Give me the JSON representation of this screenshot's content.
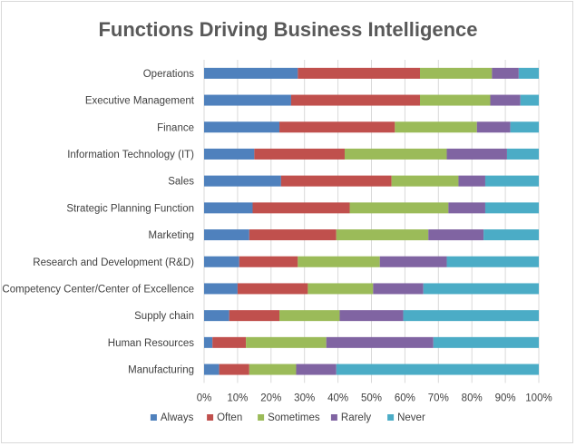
{
  "chart_data": {
    "type": "bar",
    "orientation": "horizontal",
    "stacked": "percent",
    "title": "Functions Driving Business Intelligence",
    "xlim": [
      0,
      100
    ],
    "x_ticks": [
      "0%",
      "10%",
      "20%",
      "30%",
      "40%",
      "50%",
      "60%",
      "70%",
      "80%",
      "90%",
      "100%"
    ],
    "grid": "vertical",
    "legend_position": "bottom",
    "categories": [
      "Operations",
      "Executive Management",
      "Finance",
      "Information Technology (IT)",
      "Sales",
      "Strategic Planning Function",
      "Marketing",
      "Research and Development (R&D)",
      "Competency Center/Center of Excellence",
      "Supply chain",
      "Human Resources",
      "Manufacturing"
    ],
    "series": [
      {
        "name": "Always",
        "color": "#4f81bd",
        "values": [
          28,
          26,
          22.5,
          15,
          23,
          14.5,
          13.5,
          10.5,
          10,
          7.5,
          2.5,
          4.5
        ]
      },
      {
        "name": "Often",
        "color": "#c0504d",
        "values": [
          36.5,
          38.5,
          34.5,
          27,
          33,
          29,
          26,
          17.5,
          21,
          15,
          10,
          9
        ]
      },
      {
        "name": "Sometimes",
        "color": "#9bbb59",
        "values": [
          21.5,
          21,
          24.5,
          30.5,
          20,
          29.5,
          27.5,
          24.5,
          19.5,
          18,
          24,
          14
        ]
      },
      {
        "name": "Rarely",
        "color": "#8064a2",
        "values": [
          8,
          9,
          10,
          18,
          8,
          11,
          16.5,
          20,
          15,
          19,
          32,
          12
        ]
      },
      {
        "name": "Never",
        "color": "#4bacc6",
        "values": [
          6,
          5.5,
          8.5,
          9.5,
          16,
          16,
          16.5,
          27.5,
          34.5,
          40.5,
          31.5,
          60.5
        ]
      }
    ]
  }
}
